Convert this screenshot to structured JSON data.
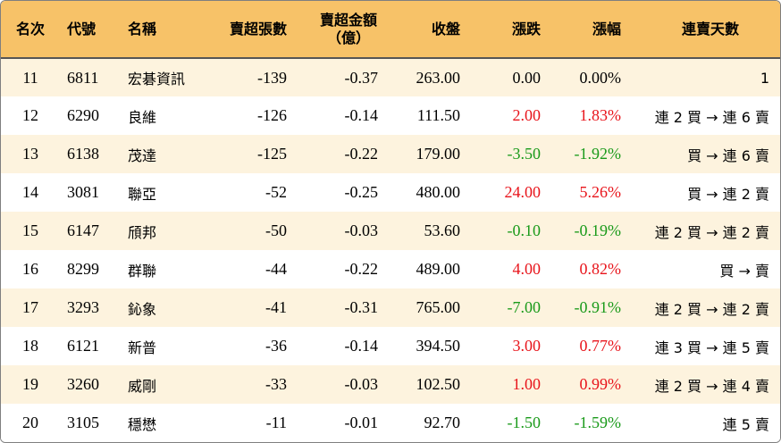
{
  "headers": {
    "rank": "名次",
    "code": "代號",
    "name": "名稱",
    "net_sell_lots": "賣超張數",
    "net_sell_amount_line1": "賣超金額",
    "net_sell_amount_line2": "（億）",
    "close": "收盤",
    "change": "漲跌",
    "change_pct": "漲幅",
    "streak": "連賣天數"
  },
  "colors": {
    "header_bg": "#f7c268",
    "odd_row_bg": "#fdf3de",
    "up": "#e8141b",
    "down": "#1a9a1a"
  },
  "rows": [
    {
      "rank": "11",
      "code": "6811",
      "name": "宏碁資訊",
      "lots": "-139",
      "amount": "-0.37",
      "close": "263.00",
      "change": "0.00",
      "pct": "0.00%",
      "dir": "flat",
      "streak": "1"
    },
    {
      "rank": "12",
      "code": "6290",
      "name": "良維",
      "lots": "-126",
      "amount": "-0.14",
      "close": "111.50",
      "change": "2.00",
      "pct": "1.83%",
      "dir": "up",
      "streak": "連 2 買 → 連 6 賣"
    },
    {
      "rank": "13",
      "code": "6138",
      "name": "茂達",
      "lots": "-125",
      "amount": "-0.22",
      "close": "179.00",
      "change": "-3.50",
      "pct": "-1.92%",
      "dir": "down",
      "streak": "買 → 連 6 賣"
    },
    {
      "rank": "14",
      "code": "3081",
      "name": "聯亞",
      "lots": "-52",
      "amount": "-0.25",
      "close": "480.00",
      "change": "24.00",
      "pct": "5.26%",
      "dir": "up",
      "streak": "買 → 連 2 賣"
    },
    {
      "rank": "15",
      "code": "6147",
      "name": "頎邦",
      "lots": "-50",
      "amount": "-0.03",
      "close": "53.60",
      "change": "-0.10",
      "pct": "-0.19%",
      "dir": "down",
      "streak": "連 2 買 → 連 2 賣"
    },
    {
      "rank": "16",
      "code": "8299",
      "name": "群聯",
      "lots": "-44",
      "amount": "-0.22",
      "close": "489.00",
      "change": "4.00",
      "pct": "0.82%",
      "dir": "up",
      "streak": "買 → 賣"
    },
    {
      "rank": "17",
      "code": "3293",
      "name": "鈊象",
      "lots": "-41",
      "amount": "-0.31",
      "close": "765.00",
      "change": "-7.00",
      "pct": "-0.91%",
      "dir": "down",
      "streak": "連 2 買 → 連 2 賣"
    },
    {
      "rank": "18",
      "code": "6121",
      "name": "新普",
      "lots": "-36",
      "amount": "-0.14",
      "close": "394.50",
      "change": "3.00",
      "pct": "0.77%",
      "dir": "up",
      "streak": "連 3 買 → 連 5 賣"
    },
    {
      "rank": "19",
      "code": "3260",
      "name": "威剛",
      "lots": "-33",
      "amount": "-0.03",
      "close": "102.50",
      "change": "1.00",
      "pct": "0.99%",
      "dir": "up",
      "streak": "連 2 買 → 連 4 賣"
    },
    {
      "rank": "20",
      "code": "3105",
      "name": "穩懋",
      "lots": "-11",
      "amount": "-0.01",
      "close": "92.70",
      "change": "-1.50",
      "pct": "-1.59%",
      "dir": "down",
      "streak": "連 5 賣"
    }
  ]
}
